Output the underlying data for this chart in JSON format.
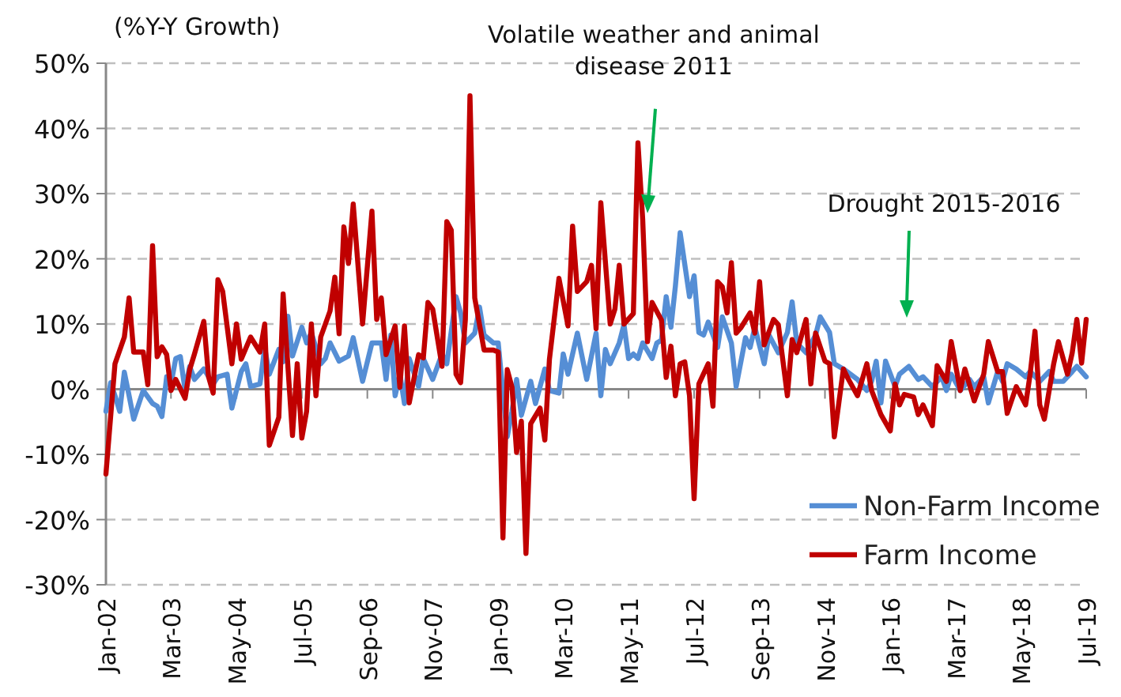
{
  "chart_data": {
    "type": "line",
    "ylabel": "(%Y-Y Growth)",
    "xlim": [
      "2002-01",
      "2019-07"
    ],
    "xticks": [
      {
        "value": "2002-01",
        "label": "Jan-02"
      },
      {
        "value": "2003-03",
        "label": "Mar-03"
      },
      {
        "value": "2004-05",
        "label": "May-04"
      },
      {
        "value": "2005-07",
        "label": "Jul-05"
      },
      {
        "value": "2006-09",
        "label": "Sep-06"
      },
      {
        "value": "2007-11",
        "label": "Nov-07"
      },
      {
        "value": "2009-01",
        "label": "Jan-09"
      },
      {
        "value": "2010-03",
        "label": "Mar-10"
      },
      {
        "value": "2011-05",
        "label": "May-11"
      },
      {
        "value": "2012-07",
        "label": "Jul-12"
      },
      {
        "value": "2013-09",
        "label": "Sep-13"
      },
      {
        "value": "2014-11",
        "label": "Nov-14"
      },
      {
        "value": "2016-01",
        "label": "Jan-16"
      },
      {
        "value": "2017-03",
        "label": "Mar-17"
      },
      {
        "value": "2018-05",
        "label": "May-18"
      },
      {
        "value": "2019-07",
        "label": "Jul-19"
      }
    ],
    "ylim": [
      -30,
      50
    ],
    "yticks": [
      {
        "value": -30,
        "label": "-30%"
      },
      {
        "value": -20,
        "label": "-20%"
      },
      {
        "value": -10,
        "label": "-10%"
      },
      {
        "value": 0,
        "label": "0%"
      },
      {
        "value": 10,
        "label": "10%"
      },
      {
        "value": 20,
        "label": "20%"
      },
      {
        "value": 30,
        "label": "30%"
      },
      {
        "value": 40,
        "label": "40%"
      },
      {
        "value": 50,
        "label": "50%"
      }
    ],
    "grid": "y",
    "legend": "bottom right",
    "annotations": [
      {
        "text": "Volatile weather and animal disease 2011",
        "x": "2011-09",
        "y": 27
      },
      "Drought 2015-2016"
    ],
    "series": [
      {
        "name": "Non-Farm Income",
        "color": "#558ed5",
        "x": [
          "2002-01",
          "2002-02",
          "2002-03",
          "2002-04",
          "2002-05",
          "2002-06",
          "2002-07",
          "2002-09",
          "2002-11",
          "2002-12",
          "2003-01",
          "2003-02",
          "2003-03",
          "2003-04",
          "2003-05",
          "2003-06",
          "2003-07",
          "2003-08",
          "2003-10",
          "2003-12",
          "2004-01",
          "2004-03",
          "2004-04",
          "2004-06",
          "2004-07",
          "2004-08",
          "2004-10",
          "2004-11",
          "2004-12",
          "2005-02",
          "2005-03",
          "2005-04",
          "2005-05",
          "2005-07",
          "2005-08",
          "2005-09",
          "2005-11",
          "2005-12",
          "2006-01",
          "2006-03",
          "2006-05",
          "2006-06",
          "2006-08",
          "2006-10",
          "2006-12",
          "2007-01",
          "2007-02",
          "2007-03",
          "2007-04",
          "2007-05",
          "2007-06",
          "2007-08",
          "2007-09",
          "2007-11",
          "2008-01",
          "2008-02",
          "2008-04",
          "2008-05",
          "2008-06",
          "2008-08",
          "2008-09",
          "2008-10",
          "2008-12",
          "2009-01",
          "2009-03",
          "2009-04",
          "2009-05",
          "2009-06",
          "2009-08",
          "2009-09",
          "2009-11",
          "2009-12",
          "2010-02",
          "2010-03",
          "2010-04",
          "2010-06",
          "2010-08",
          "2010-10",
          "2010-11",
          "2010-12",
          "2011-01",
          "2011-03",
          "2011-04",
          "2011-05",
          "2011-06",
          "2011-07",
          "2011-08",
          "2011-10",
          "2011-11",
          "2011-12",
          "2012-01",
          "2012-02",
          "2012-03",
          "2012-04",
          "2012-06",
          "2012-07",
          "2012-08",
          "2012-09",
          "2012-10",
          "2012-12",
          "2013-01",
          "2013-03",
          "2013-04",
          "2013-06",
          "2013-07",
          "2013-08",
          "2013-10",
          "2013-11",
          "2014-01",
          "2014-03",
          "2014-04",
          "2014-05",
          "2014-07",
          "2014-09",
          "2014-10",
          "2014-12",
          "2015-01",
          "2015-03",
          "2015-06",
          "2015-08",
          "2015-09",
          "2015-10",
          "2015-11",
          "2015-12",
          "2016-02",
          "2016-03",
          "2016-05",
          "2016-07",
          "2016-08",
          "2016-10",
          "2016-12",
          "2017-01",
          "2017-02",
          "2017-04",
          "2017-06",
          "2017-07",
          "2017-09",
          "2017-10",
          "2017-12",
          "2018-01",
          "2018-02",
          "2018-04",
          "2018-06",
          "2018-07",
          "2018-09",
          "2018-11",
          "2018-12",
          "2019-02",
          "2019-04",
          "2019-05",
          "2019-07"
        ],
        "values": [
          -3.4,
          1,
          -1,
          -3.4,
          2.6,
          -1,
          -4.6,
          -0.2,
          -2.2,
          -2.6,
          -4.2,
          1.9,
          0.8,
          4.7,
          5,
          -0.2,
          3.5,
          1.5,
          3.1,
          0.8,
          1.9,
          2.3,
          -2.9,
          2.7,
          3.9,
          0.4,
          0.8,
          6.4,
          2.3,
          6.1,
          4.2,
          11.2,
          5.1,
          9.5,
          7.1,
          8.7,
          3.9,
          4.7,
          7.1,
          4.3,
          5.1,
          7.9,
          1.2,
          7.1,
          7.1,
          1.5,
          8.3,
          -1,
          2.3,
          -2.2,
          4.7,
          0.4,
          4.7,
          1.5,
          5.4,
          3.9,
          14.2,
          11.7,
          7.1,
          8.6,
          12.6,
          8.3,
          7.1,
          7.1,
          -7.3,
          -3.4,
          1.5,
          -4,
          1.2,
          -2.2,
          3.1,
          -0.2,
          -0.6,
          5.4,
          2.3,
          8.6,
          1.5,
          8.6,
          -1,
          6.1,
          3.9,
          7.1,
          9.9,
          4.7,
          5.4,
          4.7,
          7.1,
          4.7,
          7.1,
          7.5,
          14.2,
          9.5,
          15.8,
          24,
          14.2,
          17.4,
          8.7,
          8.3,
          10.3,
          6.4,
          11.1,
          7.1,
          0.4,
          7.9,
          6.4,
          9.5,
          3.9,
          8.3,
          5.6,
          8.7,
          13.4,
          7.1,
          5.6,
          8.3,
          11.1,
          8.7,
          3.9,
          3.1,
          1.5,
          -0.2,
          1.2,
          4.3,
          -2.1,
          4.3,
          0.4,
          2.3,
          3.5,
          1.5,
          1.9,
          0.4,
          1.9,
          -0.2,
          2.3,
          -0.2,
          1.5,
          0.4,
          1.9,
          -2.1,
          2.7,
          1.2,
          3.9,
          3.1,
          1.9,
          2.7,
          1.2,
          2.7,
          1.2,
          1.2,
          2.7,
          3.5,
          1.9
        ]
      },
      {
        "name": "Farm Income",
        "color": "#c00000",
        "x": [
          "2002-01",
          "2002-03",
          "2002-05",
          "2002-06",
          "2002-07",
          "2002-09",
          "2002-10",
          "2002-11",
          "2002-12",
          "2003-01",
          "2003-02",
          "2003-03",
          "2003-04",
          "2003-06",
          "2003-07",
          "2003-08",
          "2003-10",
          "2003-11",
          "2003-12",
          "2004-01",
          "2004-02",
          "2004-04",
          "2004-05",
          "2004-06",
          "2004-08",
          "2004-10",
          "2004-11",
          "2004-12",
          "2005-02",
          "2005-03",
          "2005-05",
          "2005-06",
          "2005-07",
          "2005-08",
          "2005-09",
          "2005-10",
          "2005-11",
          "2006-01",
          "2006-02",
          "2006-03",
          "2006-04",
          "2006-05",
          "2006-06",
          "2006-08",
          "2006-10",
          "2006-11",
          "2006-12",
          "2007-01",
          "2007-03",
          "2007-04",
          "2007-05",
          "2007-06",
          "2007-08",
          "2007-09",
          "2007-10",
          "2007-11",
          "2008-01",
          "2008-02",
          "2008-03",
          "2008-04",
          "2008-05",
          "2008-06",
          "2008-07",
          "2008-08",
          "2008-10",
          "2008-12",
          "2009-01",
          "2009-02",
          "2009-03",
          "2009-04",
          "2009-05",
          "2009-06",
          "2009-07",
          "2009-08",
          "2009-10",
          "2009-11",
          "2009-12",
          "2010-02",
          "2010-04",
          "2010-05",
          "2010-06",
          "2010-08",
          "2010-09",
          "2010-10",
          "2010-11",
          "2011-01",
          "2011-02",
          "2011-03",
          "2011-04",
          "2011-06",
          "2011-07",
          "2011-08",
          "2011-09",
          "2011-10",
          "2011-12",
          "2012-01",
          "2012-02",
          "2012-03",
          "2012-04",
          "2012-05",
          "2012-06",
          "2012-07",
          "2012-08",
          "2012-10",
          "2012-11",
          "2012-12",
          "2013-01",
          "2013-02",
          "2013-03",
          "2013-04",
          "2013-05",
          "2013-07",
          "2013-08",
          "2013-09",
          "2013-10",
          "2013-12",
          "2014-01",
          "2014-03",
          "2014-04",
          "2014-05",
          "2014-07",
          "2014-08",
          "2014-09",
          "2014-11",
          "2014-12",
          "2015-01",
          "2015-03",
          "2015-04",
          "2015-06",
          "2015-08",
          "2015-09",
          "2015-11",
          "2016-01",
          "2016-02",
          "2016-03",
          "2016-04",
          "2016-06",
          "2016-07",
          "2016-08",
          "2016-10",
          "2016-11",
          "2017-01",
          "2017-02",
          "2017-04",
          "2017-05",
          "2017-07",
          "2017-09",
          "2017-10",
          "2017-12",
          "2018-01",
          "2018-02",
          "2018-04",
          "2018-06",
          "2018-07",
          "2018-08",
          "2018-09",
          "2018-10",
          "2018-12",
          "2019-01",
          "2019-03",
          "2019-04",
          "2019-05",
          "2019-06",
          "2019-07"
        ],
        "values": [
          -13,
          3.9,
          8,
          14,
          5.7,
          5.7,
          0.7,
          22,
          5,
          6.5,
          5.3,
          -0.2,
          1.5,
          -1.4,
          3,
          5.4,
          10.4,
          1.9,
          -0.6,
          16.8,
          15,
          3.9,
          10,
          4.6,
          8,
          5.7,
          10,
          -8.6,
          -4.3,
          14.6,
          -7.1,
          3.9,
          -7.5,
          -3.4,
          10,
          -1,
          8,
          12,
          17.2,
          8.5,
          24.9,
          19.3,
          28.4,
          10,
          27.3,
          10.7,
          14,
          5.3,
          9.7,
          0.3,
          9.7,
          -2.1,
          5.3,
          4.8,
          13.3,
          12.3,
          3.5,
          25.7,
          24.4,
          2.3,
          1,
          10.7,
          45,
          14,
          6,
          6,
          5.7,
          -22.8,
          3,
          0.3,
          -9.7,
          -4.9,
          -25.2,
          -5.3,
          -2.9,
          -7.8,
          4.6,
          17,
          9.7,
          25,
          15,
          16.5,
          19,
          9.3,
          28.6,
          10,
          12.3,
          19,
          10,
          11.6,
          37.8,
          26,
          7.3,
          13.3,
          10.6,
          1.8,
          6.6,
          -1,
          3.9,
          4.2,
          -1,
          -16.8,
          0.8,
          3.9,
          -2.6,
          16.5,
          15.7,
          11.7,
          19.4,
          8.6,
          9.4,
          11.7,
          8.6,
          16.5,
          6.8,
          10.7,
          9.9,
          -1,
          7.6,
          5.6,
          10.7,
          0.8,
          8.6,
          4.3,
          3.9,
          -7.3,
          3.1,
          1.6,
          -1,
          3.9,
          -0.2,
          -3.9,
          -6.4,
          0.8,
          -2.4,
          -0.8,
          -1.2,
          -3.9,
          -2.4,
          -5.6,
          3.6,
          1.2,
          7.3,
          -0.2,
          3.1,
          -1.8,
          2.3,
          7.3,
          2.7,
          2.7,
          -3.7,
          0.4,
          -2.4,
          2.4,
          8.9,
          -2.4,
          -4.6,
          3.9,
          7.3,
          2.3,
          5.6,
          10.7,
          4,
          10.7
        ]
      }
    ]
  }
}
